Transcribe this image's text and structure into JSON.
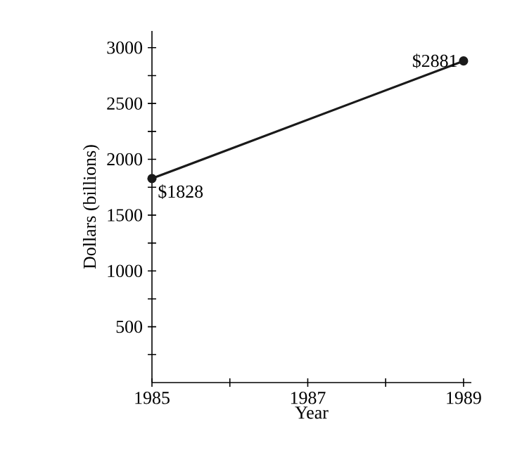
{
  "chart_data": {
    "type": "line",
    "xlabel": "Year",
    "ylabel": "Dollars (billions)",
    "x": [
      1985,
      1989
    ],
    "values": [
      1828,
      2881
    ],
    "color": "#1a1a1a",
    "value_labels": [
      "$1828",
      "$2881"
    ],
    "marker": "circle",
    "line_style": "solid",
    "grid": false,
    "xlim": [
      1985,
      1989.1
    ],
    "ylim": [
      0,
      3150
    ],
    "xticks": [
      1985,
      {
        "value": 1986,
        "label": null
      },
      1987,
      {
        "value": 1988,
        "label": null
      },
      1989
    ],
    "yticks": [
      {
        "value": 250,
        "label": null
      },
      500,
      {
        "value": 750,
        "label": null
      },
      1000,
      {
        "value": 1250,
        "label": null
      },
      1500,
      {
        "value": 1750,
        "label": null
      },
      2000,
      {
        "value": 2250,
        "label": null
      },
      2500,
      {
        "value": 2750,
        "label": null
      },
      3000
    ]
  }
}
